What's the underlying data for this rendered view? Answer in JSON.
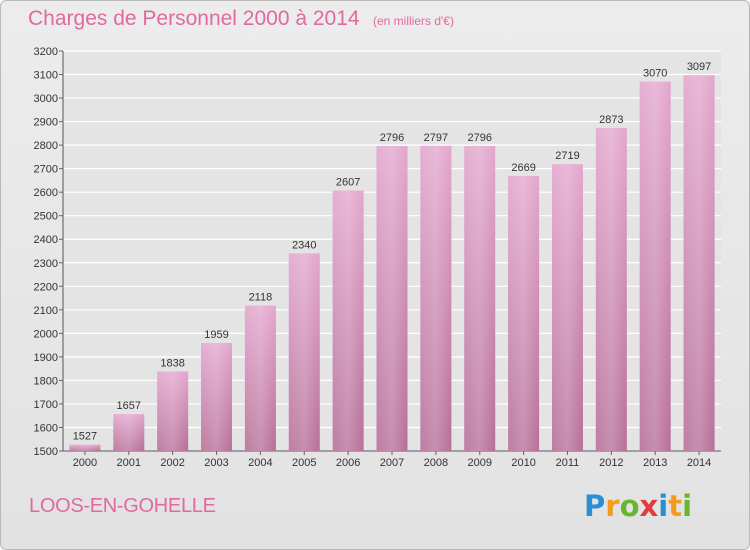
{
  "header": {
    "title": "Charges de Personnel 2000 à 2014",
    "subtitle": "(en milliers d'€)"
  },
  "footer": {
    "location": "LOOS-EN-GOHELLE",
    "logo_text": "Proxiti"
  },
  "colors": {
    "title": "#e06aa0",
    "bar_top": "#e3a6cd",
    "bar_bottom": "#b66f97"
  },
  "chart_data": {
    "type": "bar",
    "title": "Charges de Personnel 2000 à 2014",
    "subtitle": "(en milliers d'€)",
    "categories": [
      "2000",
      "2001",
      "2002",
      "2003",
      "2004",
      "2005",
      "2006",
      "2007",
      "2008",
      "2009",
      "2010",
      "2011",
      "2012",
      "2013",
      "2014"
    ],
    "values": [
      1527,
      1657,
      1838,
      1959,
      2118,
      2340,
      2607,
      2796,
      2797,
      2796,
      2669,
      2719,
      2873,
      3070,
      3097
    ],
    "ylim": [
      1500,
      3200
    ],
    "yticks": [
      1500,
      1600,
      1700,
      1800,
      1900,
      2000,
      2100,
      2200,
      2300,
      2400,
      2500,
      2600,
      2700,
      2800,
      2900,
      3000,
      3100,
      3200
    ],
    "grid": true,
    "xlabel": "",
    "ylabel": ""
  }
}
